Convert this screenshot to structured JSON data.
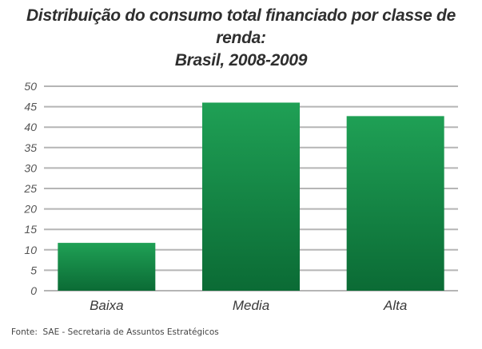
{
  "title_line1": "Distribuição do consumo total financiado por classe de renda:",
  "title_line2": "Brasil, 2008-2009",
  "source": "Fonte:  SAE - Secretaria de Assuntos Estratégicos",
  "colors": {
    "bar_top": "#1fa055",
    "bar_bottom": "#0b6b35",
    "grid": "#b5b5b5"
  },
  "chart_data": {
    "type": "bar",
    "categories": [
      "Baixa",
      "Media",
      "Alta"
    ],
    "values": [
      11.7,
      46,
      42.7
    ],
    "title": "Distribuição do consumo total financiado por classe de renda: Brasil, 2008-2009",
    "xlabel": "",
    "ylabel": "",
    "ylim": [
      0,
      50
    ],
    "yticks": [
      0,
      5,
      10,
      15,
      20,
      25,
      30,
      35,
      40,
      45,
      50
    ],
    "grid": true,
    "legend": "none"
  }
}
